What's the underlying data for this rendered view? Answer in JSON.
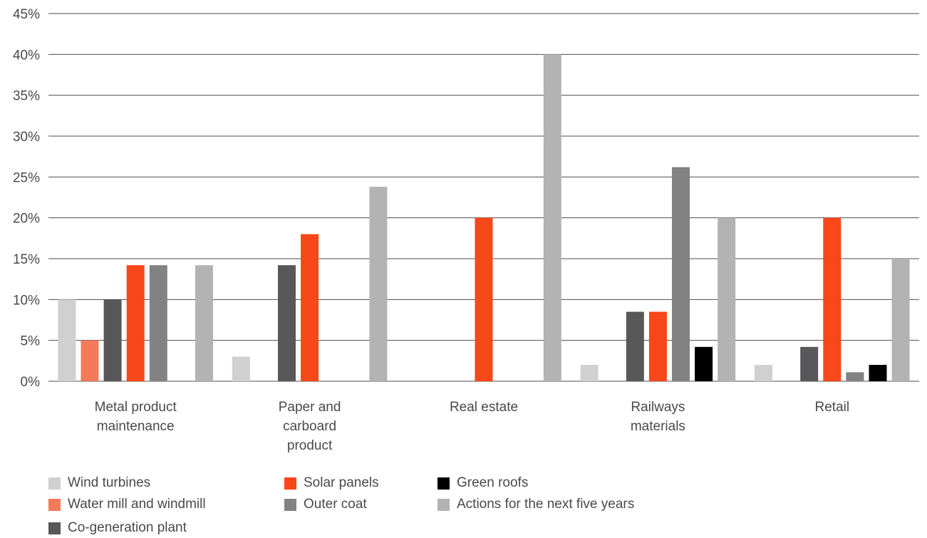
{
  "chart_data": {
    "type": "bar",
    "categories": [
      "Metal product maintenance",
      "Paper and carboard product",
      "Real estate",
      "Railways materials",
      "Retail"
    ],
    "category_label_lines": [
      [
        "Metal product",
        "maintenance"
      ],
      [
        "Paper and",
        "carboard",
        "product"
      ],
      [
        "Real estate"
      ],
      [
        "Railways",
        "materials"
      ],
      [
        "Retail"
      ]
    ],
    "series": [
      {
        "name": "Wind turbines",
        "color": "#d0d0d0",
        "values": [
          10,
          3,
          0,
          2,
          2
        ]
      },
      {
        "name": "Water mill and windmill",
        "color": "#f47a5a",
        "values": [
          5,
          0,
          0,
          0,
          0
        ]
      },
      {
        "name": "Co-generation plant",
        "color": "#58585a",
        "values": [
          10,
          14.2,
          0,
          8.5,
          4.2
        ]
      },
      {
        "name": "Solar panels",
        "color": "#f84719",
        "values": [
          14.2,
          18,
          20,
          8.5,
          20
        ]
      },
      {
        "name": "Outer coat",
        "color": "#828282",
        "values": [
          14.2,
          0,
          0,
          26.2,
          1.1
        ]
      },
      {
        "name": "Green roofs",
        "color": "#000000",
        "values": [
          0,
          0,
          0,
          4.2,
          2
        ]
      },
      {
        "name": "Actions for the next five years",
        "color": "#b3b3b3",
        "values": [
          14.2,
          23.8,
          40,
          20,
          15
        ]
      }
    ],
    "y_ticks": [
      "0%",
      "5%",
      "10%",
      "15%",
      "20%",
      "25%",
      "30%",
      "35%",
      "40%",
      "45%"
    ],
    "ylim": [
      0,
      45
    ],
    "unit": "%",
    "grid": true,
    "legend_position": "bottom-left"
  }
}
